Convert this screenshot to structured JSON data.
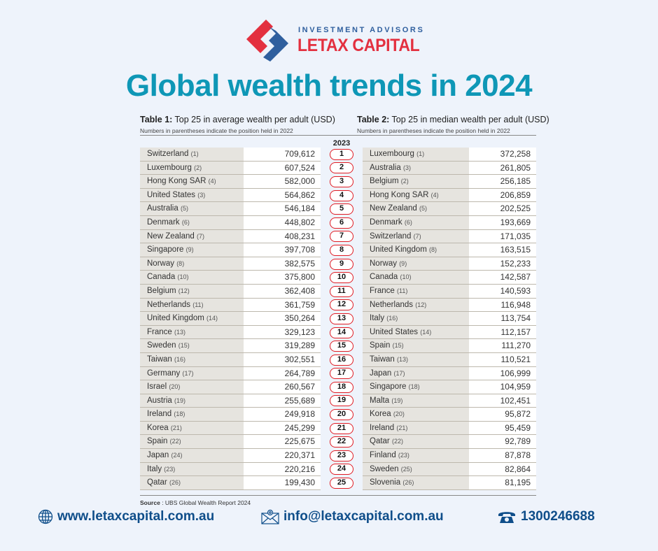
{
  "brand": {
    "tagline": "INVESTMENT ADVISORS",
    "name": "LETAX CAPITAL",
    "colors": {
      "red": "#e3303f",
      "blue": "#2f5f9e",
      "headline": "#0e97b6",
      "badge": "#e01c24"
    }
  },
  "headline": "Global wealth trends in 2024",
  "year_label": "2023",
  "table1": {
    "title_bold": "Table 1:",
    "title_rest": " Top 25 in average wealth per adult (USD)",
    "note": "Numbers in parentheses indicate the position held in 2022",
    "rows": [
      {
        "country": "Switzerland",
        "prev": "(1)",
        "value": "709,612"
      },
      {
        "country": "Luxembourg",
        "prev": "(2)",
        "value": "607,524"
      },
      {
        "country": "Hong Kong SAR",
        "prev": "(4)",
        "value": "582,000"
      },
      {
        "country": "United States",
        "prev": "(3)",
        "value": "564,862"
      },
      {
        "country": "Australia",
        "prev": "(5)",
        "value": "546,184"
      },
      {
        "country": "Denmark",
        "prev": "(6)",
        "value": "448,802"
      },
      {
        "country": "New Zealand",
        "prev": "(7)",
        "value": "408,231"
      },
      {
        "country": "Singapore",
        "prev": "(9)",
        "value": "397,708"
      },
      {
        "country": "Norway",
        "prev": "(8)",
        "value": "382,575"
      },
      {
        "country": "Canada",
        "prev": "(10)",
        "value": "375,800"
      },
      {
        "country": "Belgium",
        "prev": "(12)",
        "value": "362,408"
      },
      {
        "country": "Netherlands",
        "prev": "(11)",
        "value": "361,759"
      },
      {
        "country": "United Kingdom",
        "prev": "(14)",
        "value": "350,264"
      },
      {
        "country": "France",
        "prev": "(13)",
        "value": "329,123"
      },
      {
        "country": "Sweden",
        "prev": "(15)",
        "value": "319,289"
      },
      {
        "country": "Taiwan",
        "prev": "(16)",
        "value": "302,551"
      },
      {
        "country": "Germany",
        "prev": "(17)",
        "value": "264,789"
      },
      {
        "country": "Israel",
        "prev": "(20)",
        "value": "260,567"
      },
      {
        "country": "Austria",
        "prev": "(19)",
        "value": "255,689"
      },
      {
        "country": "Ireland",
        "prev": "(18)",
        "value": "249,918"
      },
      {
        "country": "Korea",
        "prev": "(21)",
        "value": "245,299"
      },
      {
        "country": "Spain",
        "prev": "(22)",
        "value": "225,675"
      },
      {
        "country": "Japan",
        "prev": "(24)",
        "value": "220,371"
      },
      {
        "country": "Italy",
        "prev": "(23)",
        "value": "220,216"
      },
      {
        "country": "Qatar",
        "prev": "(26)",
        "value": "199,430"
      }
    ]
  },
  "table2": {
    "title_bold": "Table 2:",
    "title_rest": " Top 25 in median wealth per adult (USD)",
    "note": "Numbers in parentheses indicate the position held in 2022",
    "rows": [
      {
        "country": "Luxembourg",
        "prev": "(1)",
        "value": "372,258"
      },
      {
        "country": "Australia",
        "prev": "(3)",
        "value": "261,805"
      },
      {
        "country": "Belgium",
        "prev": "(2)",
        "value": "256,185"
      },
      {
        "country": "Hong Kong SAR",
        "prev": "(4)",
        "value": "206,859"
      },
      {
        "country": "New Zealand",
        "prev": "(5)",
        "value": "202,525"
      },
      {
        "country": "Denmark",
        "prev": "(6)",
        "value": "193,669"
      },
      {
        "country": "Switzerland",
        "prev": "(7)",
        "value": "171,035"
      },
      {
        "country": "United Kingdom",
        "prev": "(8)",
        "value": "163,515"
      },
      {
        "country": "Norway",
        "prev": "(9)",
        "value": "152,233"
      },
      {
        "country": "Canada",
        "prev": "(10)",
        "value": "142,587"
      },
      {
        "country": "France",
        "prev": "(11)",
        "value": "140,593"
      },
      {
        "country": "Netherlands",
        "prev": "(12)",
        "value": "116,948"
      },
      {
        "country": "Italy",
        "prev": "(16)",
        "value": "113,754"
      },
      {
        "country": "United States",
        "prev": "(14)",
        "value": "112,157"
      },
      {
        "country": "Spain",
        "prev": "(15)",
        "value": "111,270"
      },
      {
        "country": "Taiwan",
        "prev": "(13)",
        "value": "110,521"
      },
      {
        "country": "Japan",
        "prev": "(17)",
        "value": "106,999"
      },
      {
        "country": "Singapore",
        "prev": "(18)",
        "value": "104,959"
      },
      {
        "country": "Malta",
        "prev": "(19)",
        "value": "102,451"
      },
      {
        "country": "Korea",
        "prev": "(20)",
        "value": "95,872"
      },
      {
        "country": "Ireland",
        "prev": "(21)",
        "value": "95,459"
      },
      {
        "country": "Qatar",
        "prev": "(22)",
        "value": "92,789"
      },
      {
        "country": "Finland",
        "prev": "(23)",
        "value": "87,878"
      },
      {
        "country": "Sweden",
        "prev": "(25)",
        "value": "82,864"
      },
      {
        "country": "Slovenia",
        "prev": "(26)",
        "value": "81,195"
      }
    ]
  },
  "ranks": [
    "1",
    "2",
    "3",
    "4",
    "5",
    "6",
    "7",
    "8",
    "9",
    "10",
    "11",
    "12",
    "13",
    "14",
    "15",
    "16",
    "17",
    "18",
    "19",
    "20",
    "21",
    "22",
    "23",
    "24",
    "25"
  ],
  "source": {
    "label": "Source",
    "text": " : UBS Global Wealth Report 2024"
  },
  "footer": {
    "website": "www.letaxcapital.com.au",
    "email": "info@letaxcapital.com.au",
    "phone": "1300246688",
    "icons": {
      "website": "globe-icon",
      "email": "envelope-icon",
      "phone": "telephone-icon"
    }
  }
}
